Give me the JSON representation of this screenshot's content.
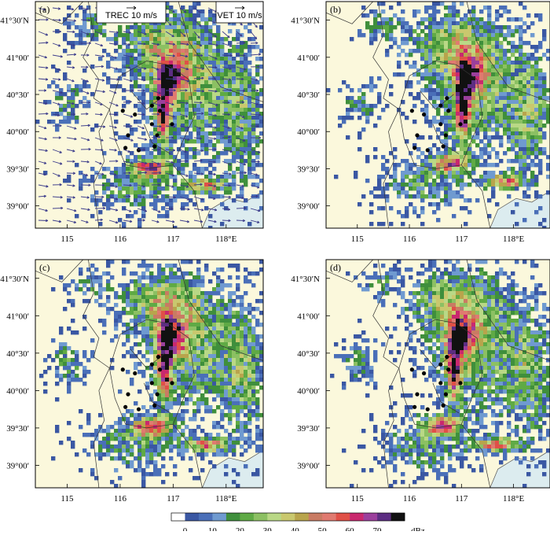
{
  "chart_data": {
    "type": "heatmap",
    "x_ticks": [
      "115",
      "116",
      "117",
      "118°E"
    ],
    "y_ticks": [
      "41°30′N",
      "41°00′",
      "40°30′",
      "40°00′",
      "39°30′",
      "39°00′"
    ],
    "x_tick_values": [
      115,
      116,
      117,
      118
    ],
    "y_tick_values": [
      41.5,
      41.0,
      40.5,
      40.0,
      39.5,
      39.0
    ],
    "xlim": [
      114.4,
      118.7
    ],
    "ylim": [
      38.7,
      41.75
    ],
    "panels": [
      {
        "label": "(a)",
        "shift": [
          -0.02,
          0.0
        ],
        "vectors": true
      },
      {
        "label": "(b)",
        "shift": [
          0.18,
          0.05
        ],
        "vectors": false
      },
      {
        "label": "(c)",
        "shift": [
          0.0,
          0.0
        ],
        "vectors": false
      },
      {
        "label": "(d)",
        "shift": [
          0.02,
          0.0
        ],
        "vectors": false
      }
    ],
    "vector_legends": [
      {
        "name": "TREC",
        "text": "TREC 10 m/s"
      },
      {
        "name": "VET",
        "text": "VET 10 m/s"
      }
    ],
    "stations": [
      [
        116.05,
        40.28
      ],
      [
        116.28,
        40.23
      ],
      [
        116.6,
        40.35
      ],
      [
        116.72,
        40.45
      ],
      [
        116.75,
        40.28
      ],
      [
        116.6,
        40.1
      ],
      [
        116.98,
        40.1
      ],
      [
        116.15,
        39.95
      ],
      [
        116.7,
        39.95
      ],
      [
        116.1,
        39.78
      ],
      [
        116.35,
        39.75
      ],
      [
        116.65,
        39.8
      ]
    ],
    "colorbar": {
      "unit": "dBz",
      "tick_labels": [
        "0",
        "10",
        "20",
        "30",
        "40",
        "50",
        "60",
        "70"
      ],
      "tick_values": [
        0,
        10,
        20,
        30,
        40,
        50,
        60,
        70
      ],
      "colors": [
        "#ffffff",
        "#3a57a3",
        "#4a6fb8",
        "#6f9ad0",
        "#3f8f3c",
        "#5faa45",
        "#8cc063",
        "#b9d886",
        "#c9c86e",
        "#b8a44c",
        "#c97b63",
        "#e07a70",
        "#e05047",
        "#c9286e",
        "#9b3f9c",
        "#5c2d82",
        "#111111"
      ]
    }
  }
}
